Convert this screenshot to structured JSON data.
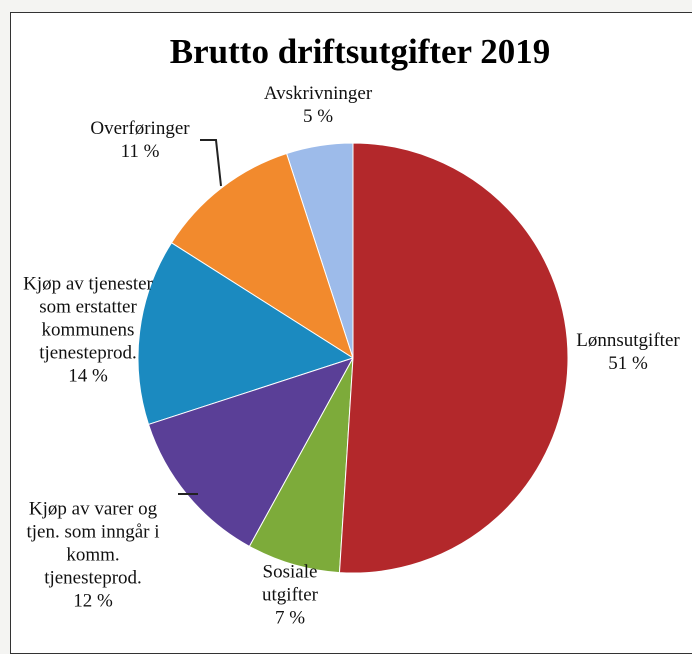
{
  "chart_data": {
    "type": "pie",
    "title": "Brutto driftsutgifter 2019",
    "categories": [
      "Lønnsutgifter",
      "Sosiale utgifter",
      "Kjøp av varer og tjen. som inngår i komm. tjenesteprod.",
      "Kjøp av tjenester som erstatter kommunens tjenesteprod.",
      "Overføringer",
      "Avskrivninger"
    ],
    "values": [
      51,
      7,
      12,
      14,
      11,
      5
    ],
    "value_labels": [
      "51 %",
      "7 %",
      "12 %",
      "14 %",
      "11 %",
      "5 %"
    ],
    "colors": [
      "#b3282b",
      "#7dab3a",
      "#5a3f97",
      "#1b8ac0",
      "#f28a2d",
      "#9dbbea"
    ]
  }
}
